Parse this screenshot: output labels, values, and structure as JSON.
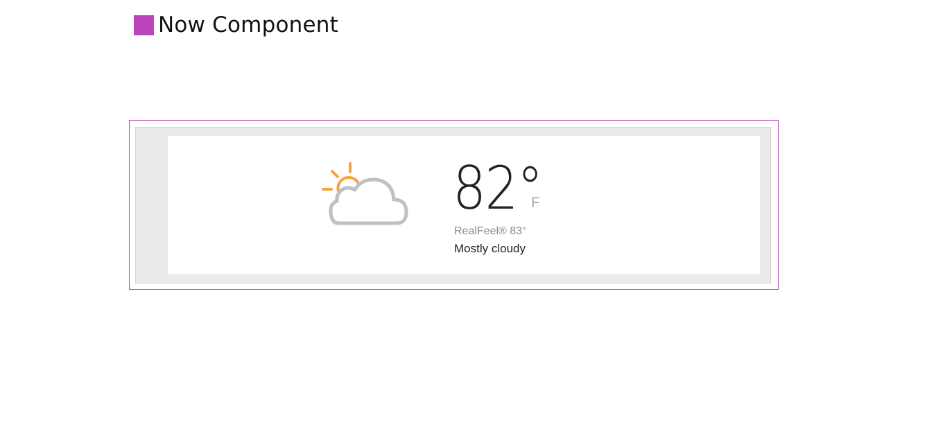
{
  "colors": {
    "accent": "#bb44bb",
    "sun": "#f7a23b",
    "cloud": "#bcc1c5"
  },
  "header": {
    "title": "Now Component"
  },
  "weather": {
    "icon": "partly-sunny-cloud-icon",
    "temperature": "82°",
    "unit": "F",
    "realfeel": "RealFeel® 83°",
    "phrase": "Mostly cloudy"
  }
}
